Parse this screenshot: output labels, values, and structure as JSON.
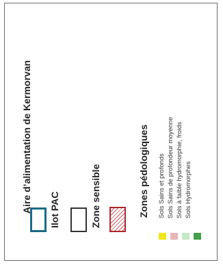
{
  "legend": {
    "title": "Aire d’alimentation de Kermorvan",
    "items": [
      {
        "label": "Ilot PAC",
        "border_color": "#1b6b86"
      },
      {
        "label": "Zone sensible",
        "border_color": "#333333"
      },
      {
        "label": "",
        "border_color": "#b0282d",
        "fill": "hatched"
      }
    ],
    "soil": {
      "heading": "Zones pédologiques",
      "classes": [
        {
          "label": "Sols Sains et profonds",
          "color": "#f0e61c"
        },
        {
          "label": "Sols Sains de profondeur moyenne",
          "color": "#e8b6b6"
        },
        {
          "label": "Sols à faible hydromorphie, froids",
          "color": "#c7e8c6"
        },
        {
          "label": "Sols Hydromorphes",
          "color": "#43a047"
        }
      ]
    }
  }
}
